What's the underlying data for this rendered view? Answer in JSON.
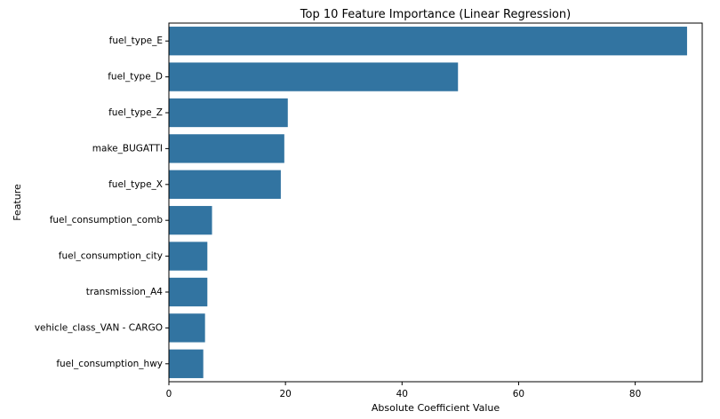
{
  "chart_data": {
    "type": "bar",
    "orientation": "horizontal",
    "title": "Top 10 Feature Importance (Linear Regression)",
    "xlabel": "Absolute Coefficient Value",
    "ylabel": "Feature",
    "xlim": [
      0,
      91.5
    ],
    "xticks": [
      0,
      20,
      40,
      60,
      80
    ],
    "categories": [
      "fuel_type_E",
      "fuel_type_D",
      "fuel_type_Z",
      "make_BUGATTI",
      "fuel_type_X",
      "fuel_consumption_comb",
      "fuel_consumption_city",
      "transmission_A4",
      "vehicle_class_VAN - CARGO",
      "fuel_consumption_hwy"
    ],
    "values": [
      88.9,
      49.6,
      20.4,
      19.8,
      19.2,
      7.4,
      6.6,
      6.6,
      6.2,
      5.9
    ],
    "bar_color": "#3274a1",
    "grid": false,
    "legend": "none"
  }
}
